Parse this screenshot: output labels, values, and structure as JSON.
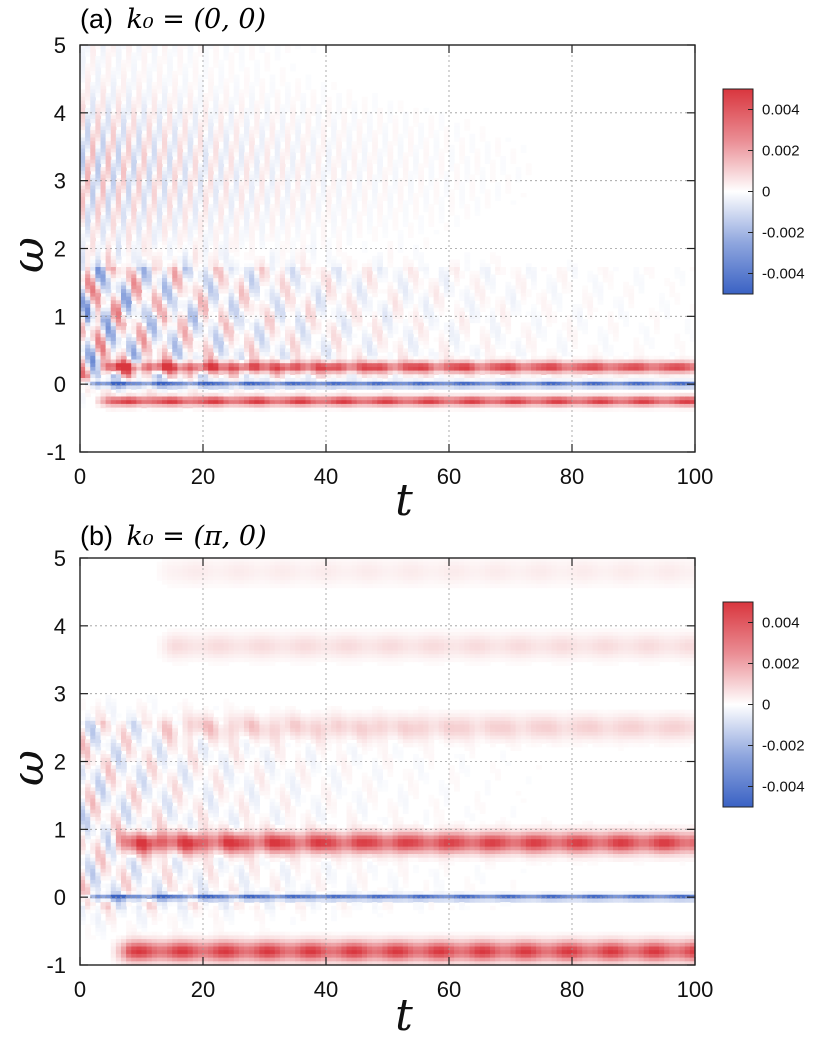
{
  "figure": {
    "colors": {
      "positive": "#d9363e",
      "negative": "#3a62c4",
      "zero": "#ffffff"
    }
  },
  "chart_data": [
    {
      "type": "heatmap",
      "panel_label": "(a)",
      "title_math": "k₀ = (0, 0)",
      "xlabel": "t",
      "ylabel": "ω",
      "xlim": [
        0,
        100
      ],
      "ylim": [
        -1,
        5
      ],
      "xticks": [
        0,
        20,
        40,
        60,
        80,
        100
      ],
      "yticks": [
        -1,
        0,
        1,
        2,
        3,
        4,
        5
      ],
      "grid": true,
      "colorbar": {
        "range": [
          -0.005,
          0.005
        ],
        "ticks": [
          0.004,
          0.002,
          0,
          -0.002,
          -0.004
        ],
        "tick_labels": [
          "0.004",
          "0.002",
          "0",
          "-0.002",
          "-0.004"
        ]
      },
      "features": [
        {
          "kind": "band",
          "omega": 0.25,
          "sign": "+",
          "amp": 0.005,
          "width": 0.08,
          "t_start": 2
        },
        {
          "kind": "band",
          "omega": -0.25,
          "sign": "+",
          "amp": 0.005,
          "width": 0.07,
          "t_start": 2
        },
        {
          "kind": "band",
          "omega": 0.0,
          "sign": "-",
          "amp": 0.005,
          "width": 0.04,
          "t_start": 0
        },
        {
          "kind": "oscillation",
          "omega_range": [
            0.5,
            1.3
          ],
          "amp": 0.004,
          "decay_t": 30
        },
        {
          "kind": "streaks",
          "omega_range": [
            1.2,
            5
          ],
          "amp": 0.002,
          "decay_t": 25
        }
      ]
    },
    {
      "type": "heatmap",
      "panel_label": "(b)",
      "title_math": "k₀ = (π, 0)",
      "xlabel": "t",
      "ylabel": "ω",
      "xlim": [
        0,
        100
      ],
      "ylim": [
        -1,
        5
      ],
      "xticks": [
        0,
        20,
        40,
        60,
        80,
        100
      ],
      "yticks": [
        -1,
        0,
        1,
        2,
        3,
        4,
        5
      ],
      "grid": true,
      "colorbar": {
        "range": [
          -0.005,
          0.005
        ],
        "ticks": [
          0.004,
          0.002,
          0,
          -0.002,
          -0.004
        ],
        "tick_labels": [
          "0.004",
          "0.002",
          "0",
          "-0.002",
          "-0.004"
        ]
      },
      "features": [
        {
          "kind": "band",
          "omega": 0.8,
          "sign": "+",
          "amp": 0.005,
          "width": 0.15,
          "t_start": 5
        },
        {
          "kind": "band",
          "omega": -0.8,
          "sign": "+",
          "amp": 0.005,
          "width": 0.15,
          "t_start": 5
        },
        {
          "kind": "band",
          "omega": 0.0,
          "sign": "-",
          "amp": 0.005,
          "width": 0.04,
          "t_start": 0
        },
        {
          "kind": "band",
          "omega": 2.5,
          "sign": "+",
          "amp": 0.0012,
          "width": 0.18,
          "t_start": 12
        },
        {
          "kind": "band",
          "omega": 3.7,
          "sign": "+",
          "amp": 0.0009,
          "width": 0.18,
          "t_start": 12
        },
        {
          "kind": "band",
          "omega": 4.8,
          "sign": "+",
          "amp": 0.0005,
          "width": 0.2,
          "t_start": 12
        },
        {
          "kind": "oscillation",
          "omega_range": [
            0.2,
            2.2
          ],
          "amp": 0.002,
          "decay_t": 25
        }
      ]
    }
  ]
}
